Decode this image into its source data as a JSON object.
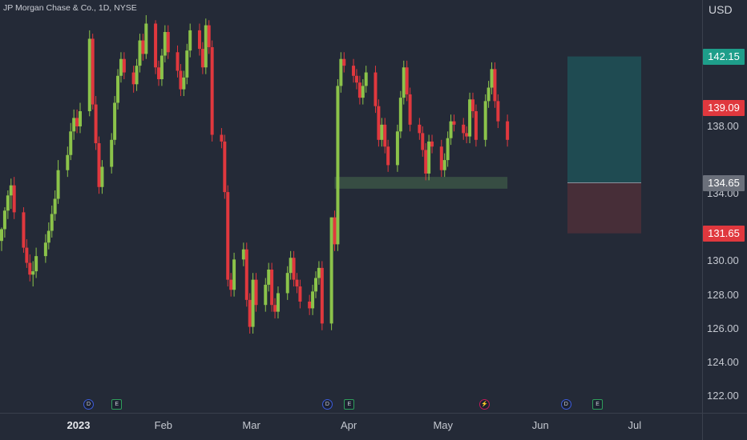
{
  "header": {
    "title": "JP Morgan Chase & Co., 1D, NYSE",
    "currency": "USD"
  },
  "colors": {
    "up": "#8bc34a",
    "down": "#e0383e",
    "bg": "#242a37",
    "target": "#1f4f55",
    "stop": "#4b2f38"
  },
  "price_badges": [
    {
      "label": "142.15",
      "value": 142.15,
      "color": "#1e9e8a"
    },
    {
      "label": "139.09",
      "value": 139.09,
      "color": "#e0383e"
    },
    {
      "label": "134.65",
      "value": 134.65,
      "color": "#6b707b"
    },
    {
      "label": "131.65",
      "value": 131.65,
      "color": "#e0383e"
    }
  ],
  "events": [
    {
      "label": "D",
      "day": 0,
      "kind": "dividend"
    },
    {
      "label": "E",
      "day": 9,
      "kind": "earnings"
    },
    {
      "label": "D",
      "day": 76,
      "kind": "dividend"
    },
    {
      "label": "E",
      "day": 83,
      "kind": "earnings"
    },
    {
      "label": "⚡",
      "day": 126,
      "kind": "split"
    },
    {
      "label": "D",
      "day": 152,
      "kind": "dividend"
    },
    {
      "label": "E",
      "day": 162,
      "kind": "earnings"
    }
  ],
  "chart_data": {
    "type": "candlestick",
    "title": "JP Morgan Chase & Co., 1D, NYSE",
    "ylim": [
      121,
      145.5
    ],
    "y_ticks": [
      122,
      124,
      126,
      128,
      130,
      134,
      138
    ],
    "y_tick_labels": [
      "122.00",
      "124.00",
      "126.00",
      "128.00",
      "130.00",
      "134.00",
      "138.00"
    ],
    "x_ticks": [
      {
        "label": "2023",
        "day": 0,
        "bold": true
      },
      {
        "label": "Feb",
        "day": 27
      },
      {
        "label": "Mar",
        "day": 55
      },
      {
        "label": "Apr",
        "day": 86
      },
      {
        "label": "May",
        "day": 116
      },
      {
        "label": "Jun",
        "day": 147
      },
      {
        "label": "Jul",
        "day": 177
      }
    ],
    "closes": [
      131.9,
      133.0,
      133.9,
      134.5,
      132.9,
      130.8,
      129.9,
      129.2,
      129.4,
      130.3,
      131.1,
      131.8,
      132.8,
      133.7,
      135.4,
      136.3,
      137.7,
      138.5,
      138.0,
      138.9,
      143.2,
      139.3,
      137.0,
      134.4,
      135.6,
      137.2,
      139.4,
      141.0,
      142.0,
      141.2,
      140.5,
      141.6,
      143.1,
      142.3,
      144.1,
      141.5,
      140.8,
      142.2,
      143.6,
      142.4,
      141.3,
      140.2,
      140.9,
      142.5,
      143.7,
      142.6,
      141.5,
      144.0,
      142.7,
      137.5,
      137.1,
      134.1,
      128.9,
      128.3,
      130.1,
      130.7,
      127.7,
      126.1,
      128.9,
      127.4,
      128.6,
      129.5,
      127.4,
      127.0,
      128.1,
      129.3,
      130.2,
      128.9,
      128.5,
      127.6,
      127.2,
      128.2,
      129.0,
      129.6,
      126.3,
      132.6,
      131.0,
      140.4,
      142.0,
      141.6,
      141.0,
      140.6,
      139.7,
      140.4,
      141.2,
      139.2,
      137.2,
      138.1,
      136.8,
      135.7,
      137.7,
      139.7,
      141.5,
      139.9,
      138.1,
      137.6,
      136.6,
      135.2,
      137.1,
      136.8,
      135.4,
      136.0,
      137.3,
      138.3,
      138.1,
      137.6,
      137.4,
      139.6,
      138.9,
      137.2,
      139.5,
      140.3,
      141.4,
      139.5,
      138.3,
      137.2
    ],
    "candles": [
      [
        131.2,
        132.0,
        130.6,
        131.9
      ],
      [
        131.9,
        133.2,
        131.4,
        133.0
      ],
      [
        133.0,
        134.2,
        132.5,
        133.9
      ],
      [
        133.9,
        134.9,
        133.1,
        134.5
      ],
      [
        134.5,
        135.0,
        132.5,
        132.9
      ],
      [
        132.9,
        133.2,
        130.5,
        130.8
      ],
      [
        130.8,
        131.3,
        129.6,
        129.9
      ],
      [
        129.9,
        130.4,
        128.8,
        129.2
      ],
      [
        129.2,
        130.0,
        128.5,
        129.4
      ],
      [
        129.4,
        130.8,
        129.0,
        130.3
      ],
      [
        130.3,
        131.6,
        129.9,
        131.1
      ],
      [
        131.1,
        132.3,
        130.7,
        131.8
      ],
      [
        131.8,
        133.3,
        131.4,
        132.8
      ],
      [
        132.8,
        134.2,
        132.4,
        133.7
      ],
      [
        133.7,
        136.0,
        133.4,
        135.4
      ],
      [
        135.4,
        136.8,
        135.0,
        136.3
      ],
      [
        136.3,
        138.2,
        136.0,
        137.7
      ],
      [
        137.7,
        139.0,
        137.2,
        138.5
      ],
      [
        138.5,
        139.0,
        137.6,
        138.0
      ],
      [
        138.0,
        139.4,
        137.6,
        138.9
      ],
      [
        138.9,
        143.7,
        138.6,
        143.2
      ],
      [
        143.2,
        143.5,
        139.0,
        139.3
      ],
      [
        139.3,
        139.8,
        136.6,
        137.0
      ],
      [
        137.0,
        137.4,
        134.0,
        134.4
      ],
      [
        134.4,
        136.0,
        134.0,
        135.6
      ],
      [
        135.6,
        137.6,
        135.2,
        137.2
      ],
      [
        137.2,
        139.8,
        136.9,
        139.4
      ],
      [
        139.4,
        141.4,
        139.0,
        141.0
      ],
      [
        141.0,
        142.4,
        140.6,
        142.0
      ],
      [
        142.0,
        142.4,
        140.8,
        141.2
      ],
      [
        141.2,
        141.6,
        140.0,
        140.5
      ],
      [
        140.5,
        142.0,
        140.1,
        141.6
      ],
      [
        141.6,
        143.5,
        141.2,
        143.1
      ],
      [
        143.1,
        143.5,
        141.9,
        142.3
      ],
      [
        142.3,
        144.6,
        142.0,
        144.1
      ],
      [
        144.1,
        144.3,
        141.1,
        141.5
      ],
      [
        141.5,
        141.9,
        140.4,
        140.8
      ],
      [
        140.8,
        142.6,
        140.4,
        142.2
      ],
      [
        142.2,
        144.0,
        141.8,
        143.6
      ],
      [
        143.6,
        144.0,
        142.0,
        142.4
      ],
      [
        142.4,
        142.8,
        140.9,
        141.3
      ],
      [
        141.3,
        141.7,
        139.8,
        140.2
      ],
      [
        140.2,
        141.3,
        139.8,
        140.9
      ],
      [
        140.9,
        142.9,
        140.5,
        142.5
      ],
      [
        142.5,
        144.1,
        142.1,
        143.7
      ],
      [
        143.7,
        144.1,
        142.2,
        142.6
      ],
      [
        142.6,
        143.0,
        141.1,
        141.5
      ],
      [
        141.5,
        144.4,
        141.1,
        144.0
      ],
      [
        144.0,
        144.3,
        142.3,
        142.7
      ],
      [
        142.7,
        143.1,
        137.1,
        137.5
      ],
      [
        137.5,
        137.9,
        136.7,
        137.1
      ],
      [
        137.1,
        137.5,
        133.7,
        134.1
      ],
      [
        134.1,
        134.5,
        128.5,
        128.9
      ],
      [
        128.9,
        129.3,
        127.9,
        128.3
      ],
      [
        128.3,
        130.5,
        127.9,
        130.1
      ],
      [
        130.1,
        131.1,
        129.7,
        130.7
      ],
      [
        130.7,
        131.1,
        127.3,
        127.7
      ],
      [
        127.7,
        128.1,
        125.7,
        126.1
      ],
      [
        126.1,
        129.3,
        125.7,
        128.9
      ],
      [
        128.9,
        129.3,
        127.0,
        127.4
      ],
      [
        127.4,
        129.0,
        127.0,
        128.6
      ],
      [
        128.6,
        129.9,
        128.2,
        129.5
      ],
      [
        129.5,
        129.9,
        127.0,
        127.4
      ],
      [
        127.4,
        127.8,
        126.6,
        127.0
      ],
      [
        127.0,
        128.5,
        126.6,
        128.1
      ],
      [
        128.1,
        129.7,
        127.7,
        129.3
      ],
      [
        129.3,
        130.6,
        128.9,
        130.2
      ],
      [
        130.2,
        130.6,
        128.5,
        128.9
      ],
      [
        128.9,
        129.3,
        128.1,
        128.5
      ],
      [
        128.5,
        128.9,
        127.2,
        127.6
      ],
      [
        127.6,
        128.0,
        126.8,
        127.2
      ],
      [
        127.2,
        128.6,
        126.8,
        128.2
      ],
      [
        128.2,
        129.4,
        127.8,
        129.0
      ],
      [
        129.0,
        130.0,
        128.6,
        129.6
      ],
      [
        129.6,
        130.0,
        125.9,
        126.3
      ],
      [
        126.3,
        132.6,
        125.9,
        132.6
      ],
      [
        132.6,
        133.0,
        130.6,
        131.0
      ],
      [
        131.0,
        140.8,
        130.6,
        140.4
      ],
      [
        140.4,
        142.4,
        140.0,
        142.0
      ],
      [
        142.0,
        142.4,
        141.2,
        141.6
      ],
      [
        141.6,
        142.0,
        140.6,
        141.0
      ],
      [
        141.0,
        141.4,
        140.2,
        140.6
      ],
      [
        140.6,
        141.0,
        139.3,
        139.7
      ],
      [
        139.7,
        140.8,
        139.3,
        140.4
      ],
      [
        140.4,
        141.6,
        140.0,
        141.2
      ],
      [
        141.2,
        141.6,
        138.8,
        139.2
      ],
      [
        139.2,
        139.6,
        136.8,
        137.2
      ],
      [
        137.2,
        138.5,
        136.8,
        138.1
      ],
      [
        138.1,
        138.5,
        136.4,
        136.8
      ],
      [
        136.8,
        137.2,
        135.3,
        135.7
      ],
      [
        135.7,
        138.1,
        135.3,
        137.7
      ],
      [
        137.7,
        140.1,
        137.3,
        139.7
      ],
      [
        139.7,
        141.9,
        139.3,
        141.5
      ],
      [
        141.5,
        141.9,
        139.5,
        139.9
      ],
      [
        139.9,
        140.3,
        137.7,
        138.1
      ],
      [
        138.1,
        138.5,
        137.2,
        137.6
      ],
      [
        137.6,
        138.0,
        136.2,
        136.6
      ],
      [
        136.6,
        137.0,
        134.8,
        135.2
      ],
      [
        135.2,
        137.5,
        134.8,
        137.1
      ],
      [
        137.1,
        137.5,
        136.4,
        136.8
      ],
      [
        136.8,
        137.2,
        135.0,
        135.4
      ],
      [
        135.4,
        136.4,
        135.0,
        136.0
      ],
      [
        136.0,
        137.7,
        135.6,
        137.3
      ],
      [
        137.3,
        138.7,
        136.9,
        138.3
      ],
      [
        138.3,
        138.7,
        137.7,
        138.1
      ],
      [
        138.1,
        138.5,
        137.2,
        137.6
      ],
      [
        137.6,
        138.0,
        137.0,
        137.4
      ],
      [
        137.4,
        140.0,
        137.0,
        139.6
      ],
      [
        139.6,
        140.0,
        138.5,
        138.9
      ],
      [
        138.9,
        139.3,
        136.8,
        137.2
      ],
      [
        137.2,
        139.9,
        136.8,
        139.5
      ],
      [
        139.5,
        140.7,
        139.1,
        140.3
      ],
      [
        140.3,
        141.8,
        139.9,
        141.4
      ],
      [
        141.4,
        141.8,
        139.1,
        139.5
      ],
      [
        139.5,
        139.9,
        137.9,
        138.3
      ],
      [
        138.3,
        138.7,
        136.8,
        137.2
      ]
    ],
    "candle_days": [
      0,
      1,
      2,
      3,
      4,
      7,
      8,
      9,
      10,
      11,
      14,
      15,
      16,
      17,
      18,
      21,
      22,
      23,
      24,
      25,
      28,
      29,
      30,
      31,
      32,
      35,
      36,
      37,
      38,
      39,
      42,
      43,
      44,
      45,
      46,
      49,
      50,
      51,
      52,
      53,
      56,
      57,
      58,
      59,
      60,
      63,
      64,
      65,
      66,
      67,
      70,
      71,
      72,
      73,
      74,
      77,
      78,
      79,
      80,
      81,
      84,
      85,
      86,
      87,
      88,
      91,
      92,
      93,
      94,
      95,
      98,
      99,
      100,
      101,
      102,
      105,
      106,
      107,
      108,
      109,
      112,
      113,
      114,
      115,
      116,
      119,
      120,
      121,
      122,
      123,
      126,
      127,
      128,
      129,
      130,
      133,
      134,
      135,
      136,
      137,
      140,
      141,
      142,
      143,
      144,
      147,
      148,
      149,
      150,
      151,
      154,
      155,
      156,
      157,
      158,
      161
    ],
    "support_zone": [
      134.3,
      135.0
    ],
    "position": {
      "entry": 134.65,
      "target": 142.15,
      "stop": 131.65
    }
  }
}
